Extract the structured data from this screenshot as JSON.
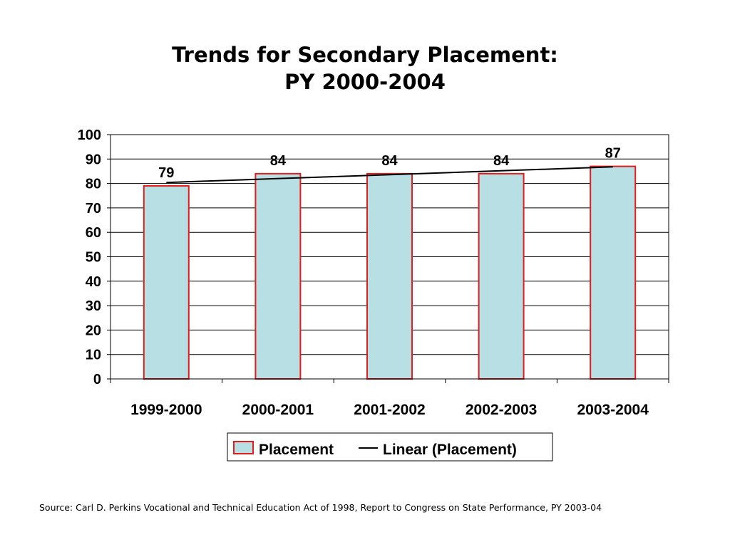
{
  "title": {
    "line1": "Trends for Secondary Placement:",
    "line2": "PY 2000-2004"
  },
  "chart_data": {
    "type": "bar",
    "categories": [
      "1999-2000",
      "2000-2001",
      "2001-2002",
      "2002-2003",
      "2003-2004"
    ],
    "series": [
      {
        "name": "Placement",
        "values": [
          79,
          84,
          84,
          84,
          87
        ]
      }
    ],
    "trendline": {
      "name": "Linear (Placement)",
      "type": "linear",
      "values": [
        80.4,
        82.0,
        83.6,
        85.2,
        86.8
      ]
    },
    "ylim": [
      0,
      100
    ],
    "yticks": [
      0,
      10,
      20,
      30,
      40,
      50,
      60,
      70,
      80,
      90,
      100
    ],
    "grid": true,
    "legend": "bottom",
    "data_labels": [
      "79",
      "84",
      "84",
      "84",
      "87"
    ],
    "colors": {
      "bar_fill": "#b8dfe3",
      "bar_stroke": "#e31d1d",
      "trendline": "#000000",
      "grid": "#000000"
    }
  },
  "source": "Source: Carl D. Perkins Vocational and Technical Education Act of 1998, Report to Congress on State Performance, PY 2003-04"
}
